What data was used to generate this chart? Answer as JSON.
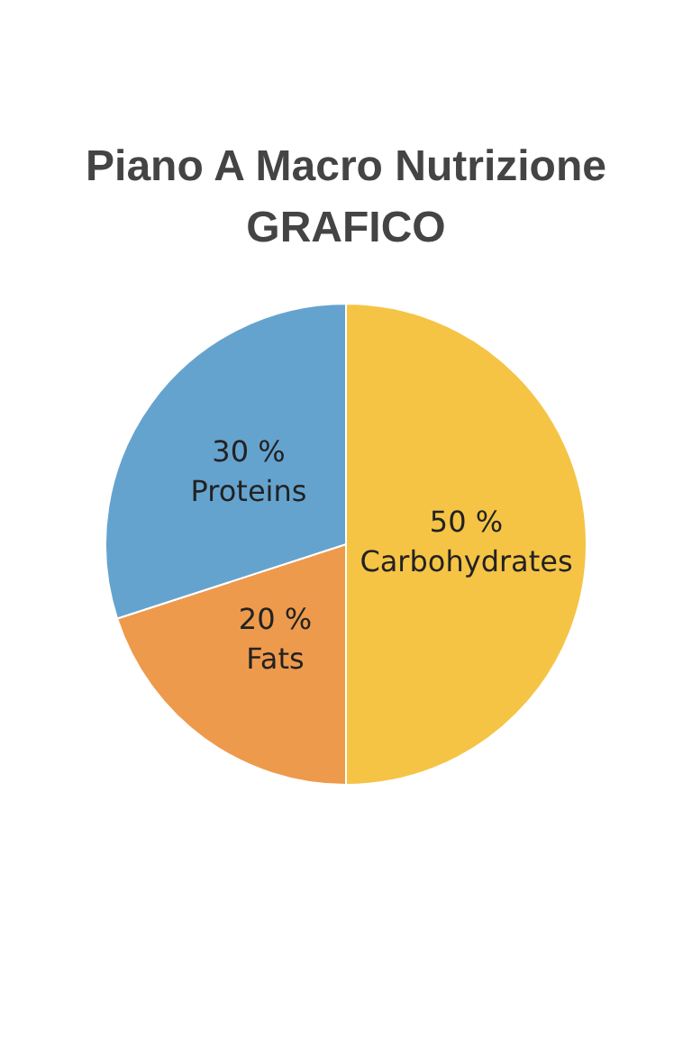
{
  "chart_data": {
    "type": "pie",
    "title": "Piano A Macro Nutrizione\nGRAFICO",
    "categories": [
      "Carbohydrates",
      "Fats",
      "Proteins"
    ],
    "values": [
      50,
      20,
      30
    ],
    "value_labels": [
      "50 %",
      "20 %",
      "30 %"
    ],
    "colors": [
      "#f5c445",
      "#ee9a4c",
      "#65a3cf"
    ],
    "legend": false
  }
}
